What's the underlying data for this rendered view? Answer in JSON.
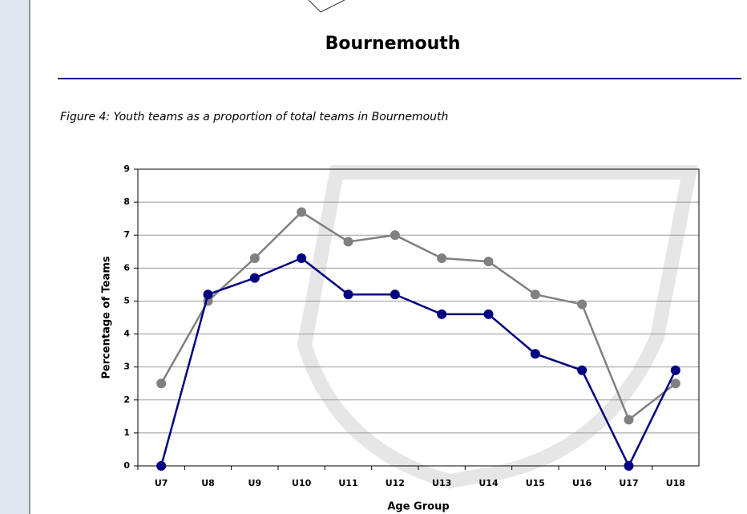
{
  "page_title": "Bournemouth",
  "caption": "Figure 4: Youth teams as a proportion of total teams in Bournemouth",
  "chart_data": {
    "type": "line",
    "xlabel": "Age Group",
    "ylabel": "Percentage of Teams",
    "categories": [
      "U7",
      "U8",
      "U9",
      "U10",
      "U11",
      "U12",
      "U13",
      "U14",
      "U15",
      "U16",
      "U17",
      "U18"
    ],
    "series": [
      {
        "color": "#808080",
        "values": [
          2.5,
          5.0,
          6.3,
          7.7,
          6.8,
          7.0,
          6.3,
          6.2,
          5.2,
          4.9,
          1.4,
          2.5
        ]
      },
      {
        "color": "#000080",
        "values": [
          0,
          5.2,
          5.7,
          6.3,
          5.2,
          5.2,
          4.6,
          4.6,
          3.4,
          2.9,
          0,
          2.9
        ]
      }
    ],
    "ylim": [
      0,
      9
    ],
    "yticks": [
      0,
      1,
      2,
      3,
      4,
      5,
      6,
      7,
      8,
      9
    ],
    "grid": true
  }
}
